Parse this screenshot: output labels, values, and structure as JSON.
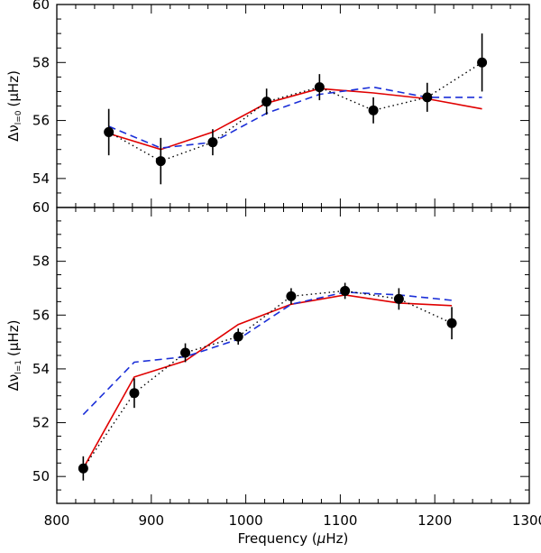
{
  "chart_data": [
    {
      "type": "line",
      "ylabel": {
        "symbol": "Δν",
        "subscript": "l=0",
        "unit": "(μHz)"
      },
      "xlim": [
        800,
        1300
      ],
      "ylim": [
        53,
        60
      ],
      "yticks": [
        54,
        56,
        58,
        60
      ],
      "yminor_step": 0.5,
      "xticks": [
        800,
        900,
        1000,
        1100,
        1200,
        1300
      ],
      "xminor_step": 20,
      "show_xtick_labels": false,
      "observed": {
        "x": [
          855,
          910,
          965,
          1022,
          1078,
          1135,
          1192,
          1250
        ],
        "y": [
          55.6,
          54.6,
          55.25,
          56.65,
          57.15,
          56.35,
          56.8,
          58.0
        ],
        "err": [
          0.8,
          0.8,
          0.45,
          0.45,
          0.45,
          0.45,
          0.5,
          1.0
        ]
      },
      "series": [
        {
          "color": "#e00000",
          "style": "solid",
          "x": [
            855,
            910,
            965,
            1022,
            1078,
            1135,
            1192,
            1250
          ],
          "y": [
            55.55,
            55.0,
            55.6,
            56.6,
            57.1,
            56.95,
            56.75,
            56.4
          ]
        },
        {
          "color": "#1b2fd8",
          "style": "dashed",
          "x": [
            855,
            910,
            965,
            1022,
            1078,
            1135,
            1192,
            1250
          ],
          "y": [
            55.8,
            55.05,
            55.25,
            56.25,
            56.9,
            57.15,
            56.8,
            56.8
          ]
        }
      ]
    },
    {
      "type": "line",
      "ylabel": {
        "symbol": "Δν",
        "subscript": "l=1",
        "unit": "(μHz)"
      },
      "xlabel": {
        "main": "Frequency (",
        "mu": "μ",
        "unit": "Hz)"
      },
      "xlim": [
        800,
        1300
      ],
      "ylim": [
        49,
        60
      ],
      "yticks": [
        50,
        52,
        54,
        56,
        58,
        60
      ],
      "yminor_step": 0.5,
      "xticks": [
        800,
        900,
        1000,
        1100,
        1200,
        1300
      ],
      "xtick_labels": [
        "800",
        "900",
        "1000",
        "1100",
        "1200",
        "1300"
      ],
      "xminor_step": 20,
      "show_xtick_labels": true,
      "observed": {
        "x": [
          828,
          882,
          936,
          992,
          1048,
          1105,
          1162,
          1218
        ],
        "y": [
          50.3,
          53.1,
          54.6,
          55.2,
          56.7,
          56.9,
          56.6,
          55.7
        ],
        "err": [
          0.45,
          0.55,
          0.35,
          0.3,
          0.3,
          0.3,
          0.4,
          0.6
        ]
      },
      "series": [
        {
          "color": "#e00000",
          "style": "solid",
          "x": [
            828,
            882,
            936,
            992,
            1048,
            1105,
            1162,
            1218
          ],
          "y": [
            50.3,
            53.7,
            54.3,
            55.65,
            56.4,
            56.75,
            56.45,
            56.35
          ]
        },
        {
          "color": "#1b2fd8",
          "style": "dashed",
          "x": [
            828,
            882,
            936,
            992,
            1048,
            1105,
            1162,
            1218
          ],
          "y": [
            52.3,
            54.25,
            54.45,
            55.1,
            56.4,
            56.85,
            56.75,
            56.55
          ]
        }
      ]
    }
  ]
}
